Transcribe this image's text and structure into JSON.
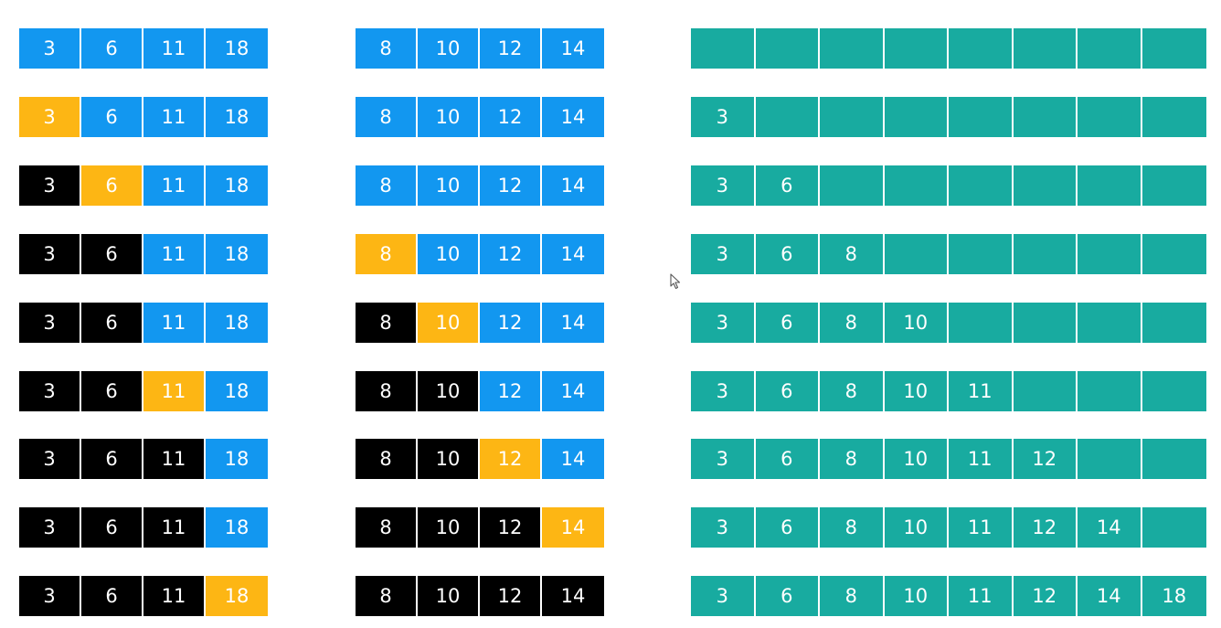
{
  "colors": {
    "unprocessed": "#1297f0",
    "current": "#fdb614",
    "done": "#000000",
    "merged": "#18aba0"
  },
  "steps": [
    {
      "left": [
        {
          "v": "3",
          "s": "unprocessed"
        },
        {
          "v": "6",
          "s": "unprocessed"
        },
        {
          "v": "11",
          "s": "unprocessed"
        },
        {
          "v": "18",
          "s": "unprocessed"
        }
      ],
      "right": [
        {
          "v": "8",
          "s": "unprocessed"
        },
        {
          "v": "10",
          "s": "unprocessed"
        },
        {
          "v": "12",
          "s": "unprocessed"
        },
        {
          "v": "14",
          "s": "unprocessed"
        }
      ],
      "merged": [
        "",
        "",
        "",
        "",
        "",
        "",
        "",
        ""
      ]
    },
    {
      "left": [
        {
          "v": "3",
          "s": "current"
        },
        {
          "v": "6",
          "s": "unprocessed"
        },
        {
          "v": "11",
          "s": "unprocessed"
        },
        {
          "v": "18",
          "s": "unprocessed"
        }
      ],
      "right": [
        {
          "v": "8",
          "s": "unprocessed"
        },
        {
          "v": "10",
          "s": "unprocessed"
        },
        {
          "v": "12",
          "s": "unprocessed"
        },
        {
          "v": "14",
          "s": "unprocessed"
        }
      ],
      "merged": [
        "3",
        "",
        "",
        "",
        "",
        "",
        "",
        ""
      ]
    },
    {
      "left": [
        {
          "v": "3",
          "s": "done"
        },
        {
          "v": "6",
          "s": "current"
        },
        {
          "v": "11",
          "s": "unprocessed"
        },
        {
          "v": "18",
          "s": "unprocessed"
        }
      ],
      "right": [
        {
          "v": "8",
          "s": "unprocessed"
        },
        {
          "v": "10",
          "s": "unprocessed"
        },
        {
          "v": "12",
          "s": "unprocessed"
        },
        {
          "v": "14",
          "s": "unprocessed"
        }
      ],
      "merged": [
        "3",
        "6",
        "",
        "",
        "",
        "",
        "",
        ""
      ]
    },
    {
      "left": [
        {
          "v": "3",
          "s": "done"
        },
        {
          "v": "6",
          "s": "done"
        },
        {
          "v": "11",
          "s": "unprocessed"
        },
        {
          "v": "18",
          "s": "unprocessed"
        }
      ],
      "right": [
        {
          "v": "8",
          "s": "current"
        },
        {
          "v": "10",
          "s": "unprocessed"
        },
        {
          "v": "12",
          "s": "unprocessed"
        },
        {
          "v": "14",
          "s": "unprocessed"
        }
      ],
      "merged": [
        "3",
        "6",
        "8",
        "",
        "",
        "",
        "",
        ""
      ]
    },
    {
      "left": [
        {
          "v": "3",
          "s": "done"
        },
        {
          "v": "6",
          "s": "done"
        },
        {
          "v": "11",
          "s": "unprocessed"
        },
        {
          "v": "18",
          "s": "unprocessed"
        }
      ],
      "right": [
        {
          "v": "8",
          "s": "done"
        },
        {
          "v": "10",
          "s": "current"
        },
        {
          "v": "12",
          "s": "unprocessed"
        },
        {
          "v": "14",
          "s": "unprocessed"
        }
      ],
      "merged": [
        "3",
        "6",
        "8",
        "10",
        "",
        "",
        "",
        ""
      ]
    },
    {
      "left": [
        {
          "v": "3",
          "s": "done"
        },
        {
          "v": "6",
          "s": "done"
        },
        {
          "v": "11",
          "s": "current"
        },
        {
          "v": "18",
          "s": "unprocessed"
        }
      ],
      "right": [
        {
          "v": "8",
          "s": "done"
        },
        {
          "v": "10",
          "s": "done"
        },
        {
          "v": "12",
          "s": "unprocessed"
        },
        {
          "v": "14",
          "s": "unprocessed"
        }
      ],
      "merged": [
        "3",
        "6",
        "8",
        "10",
        "11",
        "",
        "",
        ""
      ]
    },
    {
      "left": [
        {
          "v": "3",
          "s": "done"
        },
        {
          "v": "6",
          "s": "done"
        },
        {
          "v": "11",
          "s": "done"
        },
        {
          "v": "18",
          "s": "unprocessed"
        }
      ],
      "right": [
        {
          "v": "8",
          "s": "done"
        },
        {
          "v": "10",
          "s": "done"
        },
        {
          "v": "12",
          "s": "current"
        },
        {
          "v": "14",
          "s": "unprocessed"
        }
      ],
      "merged": [
        "3",
        "6",
        "8",
        "10",
        "11",
        "12",
        "",
        ""
      ]
    },
    {
      "left": [
        {
          "v": "3",
          "s": "done"
        },
        {
          "v": "6",
          "s": "done"
        },
        {
          "v": "11",
          "s": "done"
        },
        {
          "v": "18",
          "s": "unprocessed"
        }
      ],
      "right": [
        {
          "v": "8",
          "s": "done"
        },
        {
          "v": "10",
          "s": "done"
        },
        {
          "v": "12",
          "s": "done"
        },
        {
          "v": "14",
          "s": "current"
        }
      ],
      "merged": [
        "3",
        "6",
        "8",
        "10",
        "11",
        "12",
        "14",
        ""
      ]
    },
    {
      "left": [
        {
          "v": "3",
          "s": "done"
        },
        {
          "v": "6",
          "s": "done"
        },
        {
          "v": "11",
          "s": "done"
        },
        {
          "v": "18",
          "s": "current"
        }
      ],
      "right": [
        {
          "v": "8",
          "s": "done"
        },
        {
          "v": "10",
          "s": "done"
        },
        {
          "v": "12",
          "s": "done"
        },
        {
          "v": "14",
          "s": "done"
        }
      ],
      "merged": [
        "3",
        "6",
        "8",
        "10",
        "11",
        "12",
        "14",
        "18"
      ]
    }
  ],
  "cursor_icon": "mouse-pointer-icon"
}
